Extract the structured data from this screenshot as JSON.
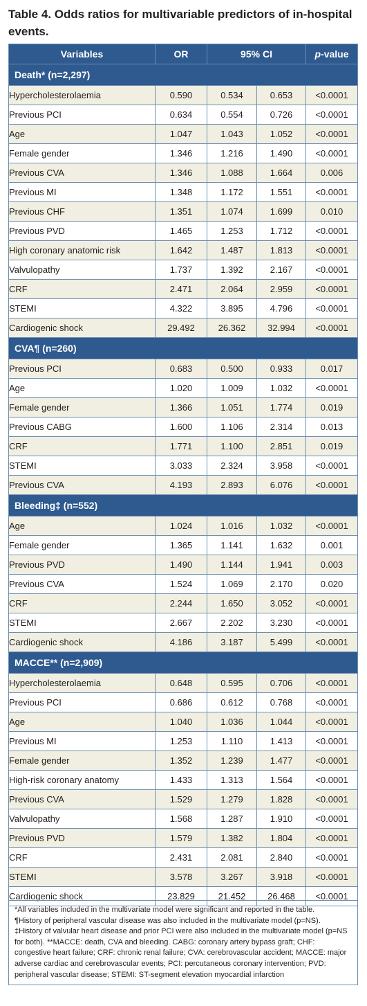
{
  "caption": "Table 4. Odds ratios for multivariable predictors of in-hospital events.",
  "headers": {
    "variables": "Variables",
    "or": "OR",
    "ci": "95% CI",
    "p_italic": "p",
    "p_rest": "-value"
  },
  "sections": [
    {
      "title": "Death* (n=2,297)",
      "rows": [
        {
          "variable": "Hypercholesterolaemia",
          "or": "0.590",
          "ci_low": "0.534",
          "ci_high": "0.653",
          "p": "<0.0001"
        },
        {
          "variable": "Previous PCI",
          "or": "0.634",
          "ci_low": "0.554",
          "ci_high": "0.726",
          "p": "<0.0001"
        },
        {
          "variable": "Age",
          "or": "1.047",
          "ci_low": "1.043",
          "ci_high": "1.052",
          "p": "<0.0001"
        },
        {
          "variable": "Female gender",
          "or": "1.346",
          "ci_low": "1.216",
          "ci_high": "1.490",
          "p": "<0.0001"
        },
        {
          "variable": "Previous CVA",
          "or": "1.346",
          "ci_low": "1.088",
          "ci_high": "1.664",
          "p": "0.006"
        },
        {
          "variable": "Previous MI",
          "or": "1.348",
          "ci_low": "1.172",
          "ci_high": "1.551",
          "p": "<0.0001"
        },
        {
          "variable": "Previous CHF",
          "or": "1.351",
          "ci_low": "1.074",
          "ci_high": "1.699",
          "p": "0.010"
        },
        {
          "variable": "Previous PVD",
          "or": "1.465",
          "ci_low": "1.253",
          "ci_high": "1.712",
          "p": "<0.0001"
        },
        {
          "variable": "High coronary anatomic risk",
          "or": "1.642",
          "ci_low": "1.487",
          "ci_high": "1.813",
          "p": "<0.0001"
        },
        {
          "variable": "Valvulopathy",
          "or": "1.737",
          "ci_low": "1.392",
          "ci_high": "2.167",
          "p": "<0.0001"
        },
        {
          "variable": "CRF",
          "or": "2.471",
          "ci_low": "2.064",
          "ci_high": "2.959",
          "p": "<0.0001"
        },
        {
          "variable": "STEMI",
          "or": "4.322",
          "ci_low": "3.895",
          "ci_high": "4.796",
          "p": "<0.0001"
        },
        {
          "variable": "Cardiogenic shock",
          "or": "29.492",
          "ci_low": "26.362",
          "ci_high": "32.994",
          "p": "<0.0001"
        }
      ]
    },
    {
      "title": "CVA¶ (n=260)",
      "rows": [
        {
          "variable": "Previous PCI",
          "or": "0.683",
          "ci_low": "0.500",
          "ci_high": "0.933",
          "p": "0.017"
        },
        {
          "variable": "Age",
          "or": "1.020",
          "ci_low": "1.009",
          "ci_high": "1.032",
          "p": "<0.0001"
        },
        {
          "variable": "Female gender",
          "or": "1.366",
          "ci_low": "1.051",
          "ci_high": "1.774",
          "p": "0.019"
        },
        {
          "variable": "Previous CABG",
          "or": "1.600",
          "ci_low": "1.106",
          "ci_high": "2.314",
          "p": "0.013"
        },
        {
          "variable": "CRF",
          "or": "1.771",
          "ci_low": "1.100",
          "ci_high": "2.851",
          "p": "0.019"
        },
        {
          "variable": "STEMI",
          "or": "3.033",
          "ci_low": "2.324",
          "ci_high": "3.958",
          "p": "<0.0001"
        },
        {
          "variable": "Previous CVA",
          "or": "4.193",
          "ci_low": "2.893",
          "ci_high": "6.076",
          "p": "<0.0001"
        }
      ]
    },
    {
      "title": "Bleeding‡ (n=552)",
      "rows": [
        {
          "variable": "Age",
          "or": "1.024",
          "ci_low": "1.016",
          "ci_high": "1.032",
          "p": "<0.0001"
        },
        {
          "variable": "Female gender",
          "or": "1.365",
          "ci_low": "1.141",
          "ci_high": "1.632",
          "p": "0.001"
        },
        {
          "variable": "Previous PVD",
          "or": "1.490",
          "ci_low": "1.144",
          "ci_high": "1.941",
          "p": "0.003"
        },
        {
          "variable": "Previous CVA",
          "or": "1.524",
          "ci_low": "1.069",
          "ci_high": "2.170",
          "p": "0.020"
        },
        {
          "variable": "CRF",
          "or": "2.244",
          "ci_low": "1.650",
          "ci_high": "3.052",
          "p": "<0.0001"
        },
        {
          "variable": "STEMI",
          "or": "2.667",
          "ci_low": "2.202",
          "ci_high": "3.230",
          "p": "<0.0001"
        },
        {
          "variable": "Cardiogenic shock",
          "or": "4.186",
          "ci_low": "3.187",
          "ci_high": "5.499",
          "p": "<0.0001"
        }
      ]
    },
    {
      "title": "MACCE** (n=2,909)",
      "rows": [
        {
          "variable": "Hypercholesterolaemia",
          "or": "0.648",
          "ci_low": "0.595",
          "ci_high": "0.706",
          "p": "<0.0001"
        },
        {
          "variable": "Previous PCI",
          "or": "0.686",
          "ci_low": "0.612",
          "ci_high": "0.768",
          "p": "<0.0001"
        },
        {
          "variable": "Age",
          "or": "1.040",
          "ci_low": "1.036",
          "ci_high": "1.044",
          "p": "<0.0001"
        },
        {
          "variable": "Previous MI",
          "or": "1.253",
          "ci_low": "1.110",
          "ci_high": "1.413",
          "p": "<0.0001"
        },
        {
          "variable": "Female gender",
          "or": "1.352",
          "ci_low": "1.239",
          "ci_high": "1.477",
          "p": "<0.0001"
        },
        {
          "variable": "High-risk coronary anatomy",
          "or": "1.433",
          "ci_low": "1.313",
          "ci_high": "1.564",
          "p": "<0.0001"
        },
        {
          "variable": "Previous CVA",
          "or": "1.529",
          "ci_low": "1.279",
          "ci_high": "1.828",
          "p": "<0.0001"
        },
        {
          "variable": "Valvulopathy",
          "or": "1.568",
          "ci_low": "1.287",
          "ci_high": "1.910",
          "p": "<0.0001"
        },
        {
          "variable": "Previous PVD",
          "or": "1.579",
          "ci_low": "1.382",
          "ci_high": "1.804",
          "p": "<0.0001"
        },
        {
          "variable": "CRF",
          "or": "2.431",
          "ci_low": "2.081",
          "ci_high": "2.840",
          "p": "<0.0001"
        },
        {
          "variable": "STEMI",
          "or": "3.578",
          "ci_low": "3.267",
          "ci_high": "3.918",
          "p": "<0.0001"
        },
        {
          "variable": "Cardiogenic shock",
          "or": "23.829",
          "ci_low": "21.452",
          "ci_high": "26.468",
          "p": "<0.0001"
        }
      ]
    }
  ],
  "footnotes": [
    "*All variables included in the multivariate model were significant and reported in the table.",
    "¶History of peripheral vascular disease was also included in the multivariate model (p=NS).",
    "‡History of valvular heart disease and prior PCI were also included in the multivariate model (p=NS for both). **MACCE: death, CVA and bleeding. CABG: coronary artery bypass graft; CHF: congestive heart failure; CRF: chronic renal failure; CVA: cerebrovascular accident; MACCE: major adverse cardiac and cerebrovascular events; PCI: percutaneous coronary intervention; PVD: peripheral vascular disease; STEMI: ST-segment elevation myocardial infarction"
  ],
  "colors": {
    "header_bg": "#2e5a8f",
    "row_tint": "#f1efe1",
    "border": "#6d8fb0"
  }
}
